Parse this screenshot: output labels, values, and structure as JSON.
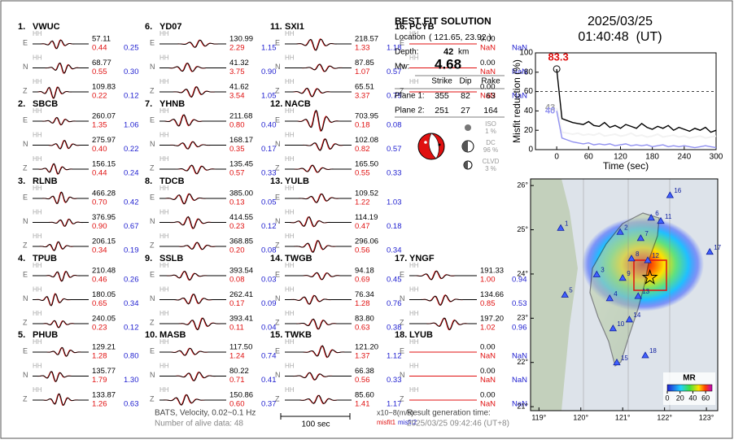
{
  "stations": [
    {
      "label": "1.",
      "name": "VWUC",
      "components": [
        {
          "comp": "E",
          "channel": "HH",
          "amp": "57.11",
          "misfit1": "0.44",
          "misfit2": "0.25"
        },
        {
          "comp": "N",
          "channel": "HH",
          "amp": "68.77",
          "misfit1": "0.55",
          "misfit2": "0.30"
        },
        {
          "comp": "Z",
          "channel": "HH",
          "amp": "109.83",
          "misfit1": "0.22",
          "misfit2": "0.12"
        }
      ]
    },
    {
      "label": "2.",
      "name": "SBCB",
      "components": [
        {
          "comp": "E",
          "channel": "HH",
          "amp": "260.07",
          "misfit1": "1.35",
          "misfit2": "1.06"
        },
        {
          "comp": "N",
          "channel": "HH",
          "amp": "275.97",
          "misfit1": "0.40",
          "misfit2": "0.22"
        },
        {
          "comp": "Z",
          "channel": "HH",
          "amp": "156.15",
          "misfit1": "0.44",
          "misfit2": "0.24"
        }
      ]
    },
    {
      "label": "3.",
      "name": "RLNB",
      "components": [
        {
          "comp": "E",
          "channel": "HH",
          "amp": "466.28",
          "misfit1": "0.70",
          "misfit2": "0.42"
        },
        {
          "comp": "N",
          "channel": "HH",
          "amp": "376.95",
          "misfit1": "0.90",
          "misfit2": "0.67"
        },
        {
          "comp": "Z",
          "channel": "HH",
          "amp": "206.15",
          "misfit1": "0.34",
          "misfit2": "0.19"
        }
      ]
    },
    {
      "label": "4.",
      "name": "TPUB",
      "components": [
        {
          "comp": "E",
          "channel": "HH",
          "amp": "210.48",
          "misfit1": "0.46",
          "misfit2": "0.26"
        },
        {
          "comp": "N",
          "channel": "HH",
          "amp": "180.05",
          "misfit1": "0.65",
          "misfit2": "0.34"
        },
        {
          "comp": "Z",
          "channel": "HH",
          "amp": "240.05",
          "misfit1": "0.23",
          "misfit2": "0.12"
        }
      ]
    },
    {
      "label": "5.",
      "name": "PHUB",
      "components": [
        {
          "comp": "E",
          "channel": "HH",
          "amp": "129.21",
          "misfit1": "1.28",
          "misfit2": "0.80"
        },
        {
          "comp": "N",
          "channel": "HH",
          "amp": "135.77",
          "misfit1": "1.79",
          "misfit2": "1.30"
        },
        {
          "comp": "Z",
          "channel": "HH",
          "amp": "133.87",
          "misfit1": "1.26",
          "misfit2": "0.63"
        }
      ]
    },
    {
      "label": "6.",
      "name": "YD07",
      "components": [
        {
          "comp": "E",
          "channel": "HH",
          "amp": "130.99",
          "misfit1": "2.29",
          "misfit2": "1.15"
        },
        {
          "comp": "N",
          "channel": "HH",
          "amp": "41.32",
          "misfit1": "3.75",
          "misfit2": "0.90"
        },
        {
          "comp": "Z",
          "channel": "HH",
          "amp": "41.62",
          "misfit1": "3.54",
          "misfit2": "1.05"
        }
      ]
    },
    {
      "label": "7.",
      "name": "YHNB",
      "components": [
        {
          "comp": "E",
          "channel": "HH",
          "amp": "211.68",
          "misfit1": "0.80",
          "misfit2": "0.40"
        },
        {
          "comp": "N",
          "channel": "HH",
          "amp": "168.17",
          "misfit1": "0.35",
          "misfit2": "0.17"
        },
        {
          "comp": "Z",
          "channel": "HH",
          "amp": "135.45",
          "misfit1": "0.57",
          "misfit2": "0.33"
        }
      ]
    },
    {
      "label": "8.",
      "name": "TDCB",
      "components": [
        {
          "comp": "E",
          "channel": "HH",
          "amp": "385.00",
          "misfit1": "0.13",
          "misfit2": "0.05"
        },
        {
          "comp": "N",
          "channel": "HH",
          "amp": "414.55",
          "misfit1": "0.23",
          "misfit2": "0.12"
        },
        {
          "comp": "Z",
          "channel": "HH",
          "amp": "368.85",
          "misfit1": "0.20",
          "misfit2": "0.08"
        }
      ]
    },
    {
      "label": "9.",
      "name": "SSLB",
      "components": [
        {
          "comp": "E",
          "channel": "HH",
          "amp": "393.54",
          "misfit1": "0.08",
          "misfit2": "0.03"
        },
        {
          "comp": "N",
          "channel": "HH",
          "amp": "262.41",
          "misfit1": "0.17",
          "misfit2": "0.09"
        },
        {
          "comp": "Z",
          "channel": "HH",
          "amp": "393.41",
          "misfit1": "0.11",
          "misfit2": "0.04"
        }
      ]
    },
    {
      "label": "10.",
      "name": "MASB",
      "components": [
        {
          "comp": "E",
          "channel": "HH",
          "amp": "117.50",
          "misfit1": "1.24",
          "misfit2": "0.74"
        },
        {
          "comp": "N",
          "channel": "HH",
          "amp": "80.22",
          "misfit1": "0.71",
          "misfit2": "0.41"
        },
        {
          "comp": "Z",
          "channel": "HH",
          "amp": "150.86",
          "misfit1": "0.60",
          "misfit2": "0.37"
        }
      ]
    },
    {
      "label": "11.",
      "name": "SXI1",
      "components": [
        {
          "comp": "E",
          "channel": "HH",
          "amp": "218.57",
          "misfit1": "1.33",
          "misfit2": "1.18"
        },
        {
          "comp": "N",
          "channel": "HH",
          "amp": "87.85",
          "misfit1": "1.07",
          "misfit2": "0.57"
        },
        {
          "comp": "Z",
          "channel": "HH",
          "amp": "65.51",
          "misfit1": "3.37",
          "misfit2": "0.79"
        }
      ]
    },
    {
      "label": "12.",
      "name": "NACB",
      "components": [
        {
          "comp": "E",
          "channel": "HH",
          "amp": "703.95",
          "misfit1": "0.18",
          "misfit2": "0.08"
        },
        {
          "comp": "N",
          "channel": "HH",
          "amp": "102.08",
          "misfit1": "0.82",
          "misfit2": "0.57"
        },
        {
          "comp": "Z",
          "channel": "HH",
          "amp": "165.50",
          "misfit1": "0.55",
          "misfit2": "0.33"
        }
      ]
    },
    {
      "label": "13.",
      "name": "YULB",
      "components": [
        {
          "comp": "E",
          "channel": "HH",
          "amp": "109.52",
          "misfit1": "1.22",
          "misfit2": "1.03"
        },
        {
          "comp": "N",
          "channel": "HH",
          "amp": "114.19",
          "misfit1": "0.47",
          "misfit2": "0.18"
        },
        {
          "comp": "Z",
          "channel": "HH",
          "amp": "296.06",
          "misfit1": "0.56",
          "misfit2": "0.34"
        }
      ]
    },
    {
      "label": "14.",
      "name": "TWGB",
      "components": [
        {
          "comp": "E",
          "channel": "HH",
          "amp": "94.18",
          "misfit1": "0.69",
          "misfit2": "0.45"
        },
        {
          "comp": "N",
          "channel": "HH",
          "amp": "76.34",
          "misfit1": "1.28",
          "misfit2": "0.76"
        },
        {
          "comp": "Z",
          "channel": "HH",
          "amp": "83.80",
          "misfit1": "0.63",
          "misfit2": "0.38"
        }
      ]
    },
    {
      "label": "15.",
      "name": "TWKB",
      "components": [
        {
          "comp": "E",
          "channel": "HH",
          "amp": "121.20",
          "misfit1": "1.37",
          "misfit2": "1.12"
        },
        {
          "comp": "N",
          "channel": "HH",
          "amp": "66.38",
          "misfit1": "0.56",
          "misfit2": "0.33"
        },
        {
          "comp": "Z",
          "channel": "HH",
          "amp": "85.60",
          "misfit1": "1.41",
          "misfit2": "1.17"
        }
      ]
    },
    {
      "label": "16.",
      "name": "PCYB",
      "components": [
        {
          "comp": "E",
          "channel": "HH",
          "amp": "0.00",
          "misfit1": "NaN",
          "misfit2": "NaN"
        },
        {
          "comp": "N",
          "channel": "HH",
          "amp": "0.00",
          "misfit1": "NaN",
          "misfit2": "NaN"
        },
        {
          "comp": "Z",
          "channel": "HH",
          "amp": "0.00",
          "misfit1": "NaN",
          "misfit2": "NaN"
        }
      ]
    },
    {
      "label": "17.",
      "name": "YNGF",
      "components": [
        {
          "comp": "E",
          "channel": "HH",
          "amp": "191.33",
          "misfit1": "1.00",
          "misfit2": "0.94"
        },
        {
          "comp": "N",
          "channel": "HH",
          "amp": "134.66",
          "misfit1": "0.85",
          "misfit2": "0.53"
        },
        {
          "comp": "Z",
          "channel": "HH",
          "amp": "197.20",
          "misfit1": "1.02",
          "misfit2": "0.96"
        }
      ]
    },
    {
      "label": "18.",
      "name": "LYUB",
      "components": [
        {
          "comp": "E",
          "channel": "HH",
          "amp": "0.00",
          "misfit1": "NaN",
          "misfit2": "NaN"
        },
        {
          "comp": "N",
          "channel": "HH",
          "amp": "0.00",
          "misfit1": "NaN",
          "misfit2": "NaN"
        },
        {
          "comp": "Z",
          "channel": "HH",
          "amp": "0.00",
          "misfit1": "NaN",
          "misfit2": "NaN"
        }
      ]
    }
  ],
  "solution": {
    "title": "BEST FIT SOLUTION",
    "location_label": "Location",
    "location": "( 121.65, 23.92 )",
    "depth_label": "Depth:",
    "depth": "42",
    "depth_unit": "km",
    "mw_label": "Mw:",
    "mw": "4.68",
    "headers": [
      "Strike",
      "Dip",
      "Rake"
    ],
    "planes": [
      {
        "label": "Plane 1:",
        "values": [
          "355",
          "82",
          "63"
        ]
      },
      {
        "label": "Plane 2:",
        "values": [
          "251",
          "27",
          "164"
        ]
      }
    ],
    "components": [
      {
        "name": "ISO",
        "percent": "1 %"
      },
      {
        "name": "DC",
        "percent": "96 %"
      },
      {
        "name": "CLVD",
        "percent": "3 %"
      }
    ]
  },
  "datetime": {
    "date": "2025/03/25",
    "time": "01:40:48  (UT)"
  },
  "misfit_chart": {
    "ylabel": "Misfit reduction (%)",
    "xlabel": "Time (sec)",
    "xlim": [
      -40,
      300
    ],
    "ylim": [
      0,
      100
    ],
    "xticks": [
      0,
      60,
      120,
      180,
      240,
      300
    ],
    "yticks": [
      0,
      20,
      40,
      60,
      80,
      100
    ],
    "threshold": 60,
    "x": [
      0,
      10,
      20,
      30,
      40,
      50,
      60,
      70,
      80,
      90,
      100,
      110,
      120,
      130,
      140,
      150,
      160,
      170,
      180,
      190,
      200,
      210,
      220,
      230,
      240,
      250,
      260,
      270,
      280,
      290,
      300
    ],
    "series": [
      {
        "color": "#000000",
        "start_label": "83.3",
        "label_color": "#e01010",
        "values": [
          83.3,
          32,
          30,
          28,
          27,
          26,
          29,
          25,
          24,
          28,
          23,
          25,
          22,
          26,
          24,
          22,
          27,
          23,
          21,
          24,
          22,
          25,
          20,
          23,
          21,
          19,
          22,
          20,
          23,
          18,
          20
        ]
      },
      {
        "color": "#f2f2f2",
        "start_label": "43",
        "label_color": "#a0a0a0",
        "values": [
          43,
          18,
          17,
          16,
          17,
          15,
          16,
          15,
          17,
          14,
          15,
          16,
          14,
          15,
          17,
          14,
          15,
          13,
          14,
          16,
          13,
          14,
          15,
          13,
          14,
          12,
          13,
          14,
          12,
          13,
          14
        ]
      },
      {
        "color": "#9090f0",
        "start_label": "40",
        "label_color": "#9090f0",
        "values": [
          40,
          12,
          10,
          8,
          7,
          6,
          7,
          5,
          6,
          5,
          6,
          4,
          5,
          6,
          4,
          5,
          4,
          5,
          3,
          4,
          5,
          3,
          4,
          3,
          4,
          3,
          2,
          3,
          4,
          3,
          2
        ]
      }
    ]
  },
  "map": {
    "lonlim": [
      118.8,
      123.27
    ],
    "latlim": [
      20.91,
      26.15
    ],
    "lonticks": [
      {
        "value": 119,
        "label": "119°"
      },
      {
        "value": 120,
        "label": "120°"
      },
      {
        "value": 121,
        "label": "121°"
      },
      {
        "value": 122,
        "label": "122°"
      },
      {
        "value": 123,
        "label": "123°"
      }
    ],
    "latticks": [
      {
        "value": 21,
        "label": "21°"
      },
      {
        "value": 22,
        "label": "22°"
      },
      {
        "value": 23,
        "label": "23°"
      },
      {
        "value": 24,
        "label": "24°"
      },
      {
        "value": 25,
        "label": "25°"
      },
      {
        "value": 26,
        "label": "26°"
      }
    ],
    "epicenter": [
      121.65,
      23.92
    ],
    "stations": [
      {
        "label": "1",
        "lon": 119.52,
        "lat": 25.04
      },
      {
        "label": "2",
        "lon": 120.94,
        "lat": 24.95
      },
      {
        "label": "3",
        "lon": 120.38,
        "lat": 23.99
      },
      {
        "label": "4",
        "lon": 120.69,
        "lat": 23.45
      },
      {
        "label": "5",
        "lon": 119.62,
        "lat": 23.53
      },
      {
        "label": "6",
        "lon": 121.68,
        "lat": 25.27
      },
      {
        "label": "7",
        "lon": 121.43,
        "lat": 24.81
      },
      {
        "label": "8",
        "lon": 121.21,
        "lat": 24.35
      },
      {
        "label": "9",
        "lon": 121.0,
        "lat": 23.91
      },
      {
        "label": "10",
        "lon": 120.77,
        "lat": 22.77
      },
      {
        "label": "11",
        "lon": 121.91,
        "lat": 25.2
      },
      {
        "label": "12",
        "lon": 121.6,
        "lat": 24.31
      },
      {
        "label": "13",
        "lon": 121.37,
        "lat": 23.5
      },
      {
        "label": "14",
        "lon": 121.16,
        "lat": 22.97
      },
      {
        "label": "15",
        "lon": 120.86,
        "lat": 22.0
      },
      {
        "label": "16",
        "lon": 122.13,
        "lat": 25.78
      },
      {
        "label": "17",
        "lon": 123.08,
        "lat": 24.5
      },
      {
        "label": "18",
        "lon": 121.54,
        "lat": 22.16
      }
    ],
    "colorbar": {
      "title": "MR",
      "lim": [
        0,
        70
      ],
      "ticks": [
        0,
        20,
        40,
        60
      ]
    }
  },
  "footer": {
    "source": "BATS, Velocity, 0.02~0.1 Hz",
    "alive": "Number of alive data: 48",
    "scale": "100 sec",
    "unit": "x10−8(m/s)",
    "misfit1": "misfit1",
    "misfit2": "misfit2",
    "result_label": "Result generation time:",
    "result_time": "2025/03/25 09:42:46 (UT+8)"
  }
}
